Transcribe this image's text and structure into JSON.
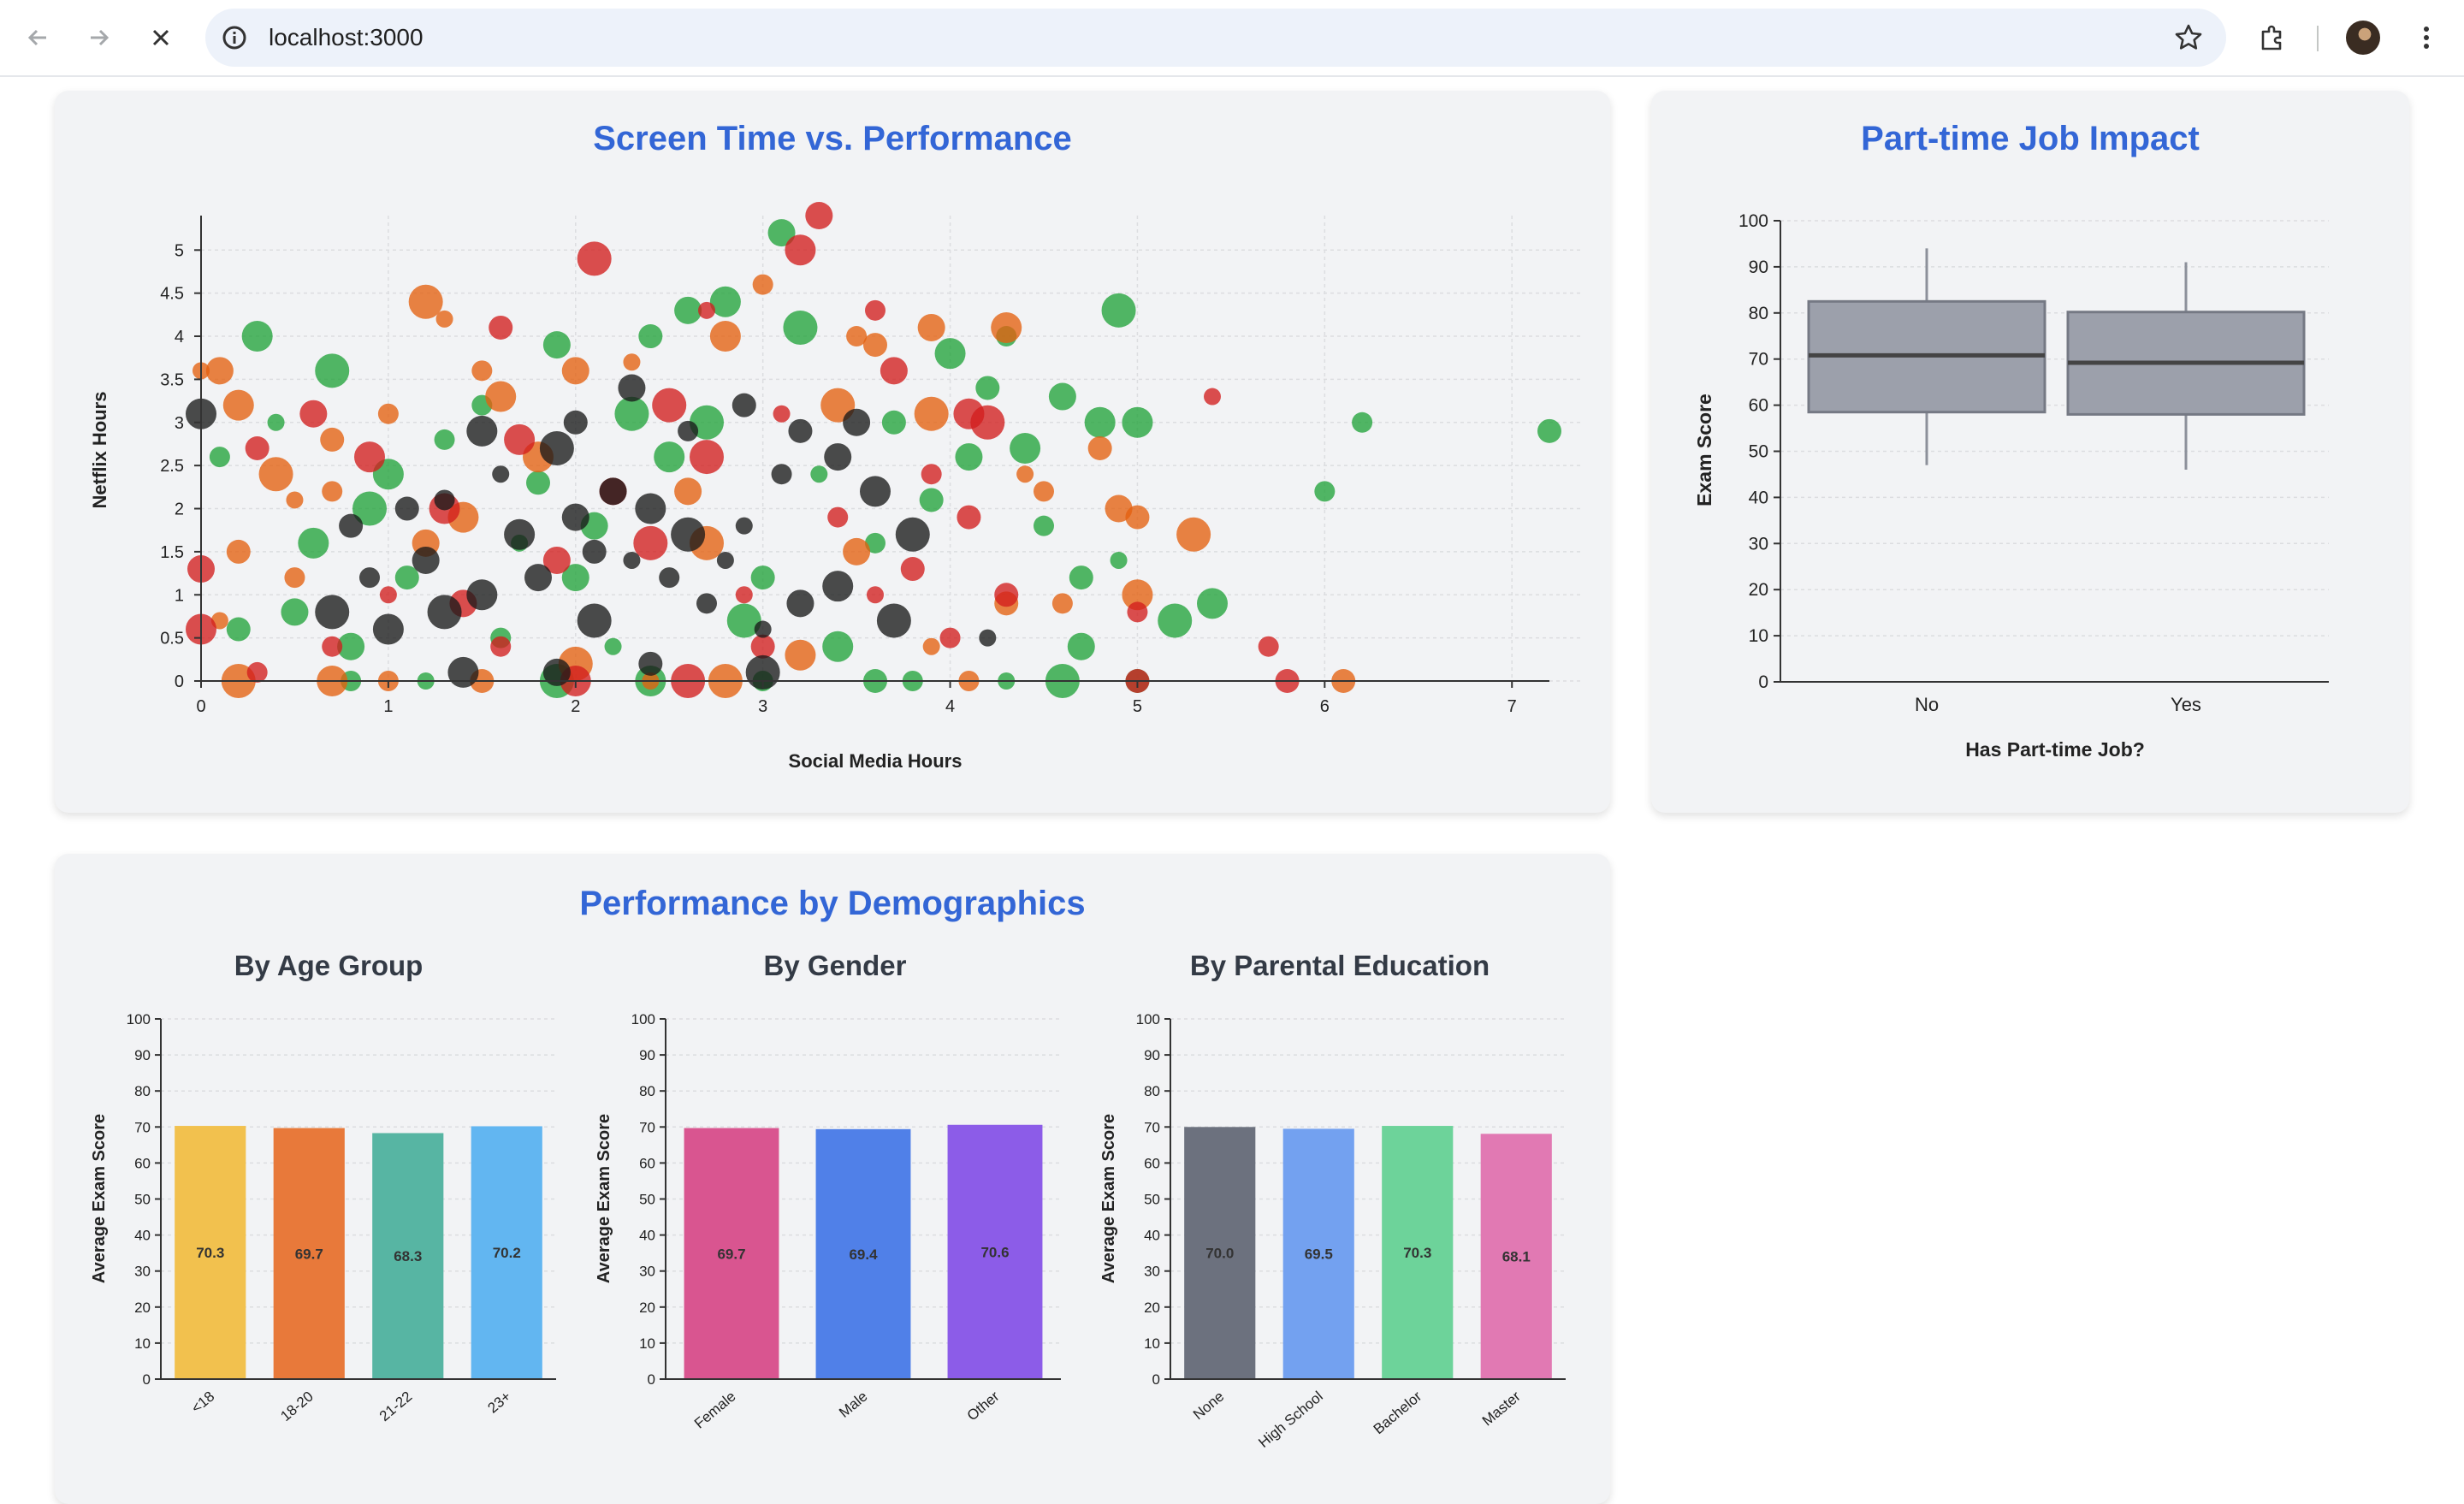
{
  "browser": {
    "url": "localhost:3000"
  },
  "scatter_card": {
    "title": "Screen Time vs. Performance"
  },
  "box_card": {
    "title": "Part-time Job Impact"
  },
  "demo_card": {
    "title": "Performance by Demographics"
  },
  "colors": {
    "title_blue": "#3366d6",
    "scatter_green": "#22a33b",
    "scatter_orange": "#e46010",
    "scatter_red": "#d21e1e",
    "scatter_dark": "#1a1a1a",
    "box_fill": "#9ca0ab"
  },
  "chart_data": [
    {
      "type": "scatter",
      "title": "Screen Time vs. Performance",
      "xlabel": "Social Media Hours",
      "ylabel": "Netflix Hours",
      "xlim": [
        0,
        7.2
      ],
      "ylim": [
        0,
        5.4
      ],
      "xticks": [
        0,
        1,
        2,
        3,
        4,
        5,
        6,
        7
      ],
      "yticks": [
        0,
        0.5,
        1,
        1.5,
        2,
        2.5,
        3,
        3.5,
        4,
        4.5,
        5
      ],
      "grid": true,
      "series": [
        {
          "color": "green",
          "points": [
            [
              3.1,
              5.2
            ],
            [
              0.3,
              4.0
            ],
            [
              0.7,
              3.6
            ],
            [
              0.4,
              3.0
            ],
            [
              1.5,
              3.2
            ],
            [
              2.4,
              4.0
            ],
            [
              2.6,
              4.3
            ],
            [
              2.8,
              4.4
            ],
            [
              3.2,
              4.1
            ],
            [
              4.0,
              3.8
            ],
            [
              4.3,
              4.0
            ],
            [
              4.2,
              3.4
            ],
            [
              4.6,
              3.3
            ],
            [
              4.8,
              3.0
            ],
            [
              4.9,
              4.3
            ],
            [
              5.0,
              3.0
            ],
            [
              6.2,
              3.0
            ],
            [
              7.2,
              2.9
            ],
            [
              6.0,
              2.2
            ],
            [
              5.4,
              0.9
            ],
            [
              5.2,
              0.7
            ],
            [
              4.9,
              1.4
            ],
            [
              4.5,
              1.8
            ],
            [
              4.7,
              1.2
            ],
            [
              4.7,
              0.4
            ],
            [
              5.0,
              0.0
            ],
            [
              4.6,
              0.0
            ],
            [
              4.3,
              0.0
            ],
            [
              3.8,
              0.0
            ],
            [
              3.6,
              0.0
            ],
            [
              3.0,
              0.0
            ],
            [
              2.4,
              0.0
            ],
            [
              1.9,
              0.0
            ],
            [
              1.2,
              0.0
            ],
            [
              0.8,
              0.0
            ],
            [
              0.2,
              0.6
            ],
            [
              0.5,
              0.8
            ],
            [
              0.6,
              1.6
            ],
            [
              0.9,
              2.0
            ],
            [
              1.0,
              2.4
            ],
            [
              1.3,
              2.8
            ],
            [
              1.8,
              2.3
            ],
            [
              2.1,
              1.8
            ],
            [
              2.5,
              2.6
            ],
            [
              2.7,
              3.0
            ],
            [
              3.3,
              2.4
            ],
            [
              3.6,
              1.6
            ],
            [
              3.9,
              2.1
            ],
            [
              4.1,
              2.6
            ],
            [
              3.4,
              0.4
            ],
            [
              2.9,
              0.7
            ],
            [
              2.2,
              0.4
            ],
            [
              1.6,
              0.5
            ],
            [
              1.1,
              1.2
            ],
            [
              0.8,
              0.4
            ],
            [
              3.0,
              1.2
            ],
            [
              2.3,
              3.1
            ],
            [
              1.7,
              1.6
            ],
            [
              0.1,
              2.6
            ],
            [
              3.7,
              3.0
            ],
            [
              1.9,
              3.9
            ],
            [
              4.4,
              2.7
            ],
            [
              2.0,
              1.2
            ]
          ]
        },
        {
          "color": "orange",
          "points": [
            [
              3.0,
              4.6
            ],
            [
              2.8,
              4.0
            ],
            [
              1.2,
              4.4
            ],
            [
              1.3,
              4.2
            ],
            [
              1.5,
              3.6
            ],
            [
              0.0,
              3.6
            ],
            [
              0.1,
              3.6
            ],
            [
              0.2,
              3.2
            ],
            [
              0.4,
              2.4
            ],
            [
              0.5,
              2.1
            ],
            [
              0.7,
              2.2
            ],
            [
              0.7,
              2.8
            ],
            [
              1.0,
              3.1
            ],
            [
              1.6,
              3.3
            ],
            [
              2.0,
              3.6
            ],
            [
              2.3,
              3.7
            ],
            [
              3.5,
              4.0
            ],
            [
              3.6,
              3.9
            ],
            [
              3.9,
              4.1
            ],
            [
              4.3,
              4.1
            ],
            [
              3.9,
              3.1
            ],
            [
              4.4,
              2.4
            ],
            [
              4.5,
              2.2
            ],
            [
              4.8,
              2.7
            ],
            [
              4.9,
              2.0
            ],
            [
              5.0,
              1.9
            ],
            [
              5.3,
              1.7
            ],
            [
              5.0,
              1.0
            ],
            [
              4.6,
              0.9
            ],
            [
              4.3,
              0.9
            ],
            [
              3.5,
              1.5
            ],
            [
              3.2,
              0.3
            ],
            [
              2.8,
              0.0
            ],
            [
              2.4,
              0.0
            ],
            [
              2.0,
              0.2
            ],
            [
              1.5,
              0.0
            ],
            [
              1.0,
              0.0
            ],
            [
              0.7,
              0.0
            ],
            [
              0.2,
              0.0
            ],
            [
              0.1,
              0.7
            ],
            [
              0.5,
              1.2
            ],
            [
              0.2,
              1.5
            ],
            [
              1.2,
              1.6
            ],
            [
              1.4,
              1.9
            ],
            [
              2.7,
              1.6
            ],
            [
              3.9,
              0.4
            ],
            [
              4.1,
              0.0
            ],
            [
              6.1,
              0.0
            ],
            [
              2.6,
              2.2
            ],
            [
              1.8,
              2.6
            ],
            [
              3.4,
              3.2
            ]
          ]
        },
        {
          "color": "red",
          "points": [
            [
              3.3,
              5.4
            ],
            [
              3.2,
              5.0
            ],
            [
              2.1,
              4.9
            ],
            [
              2.7,
              4.3
            ],
            [
              3.6,
              4.3
            ],
            [
              1.6,
              4.1
            ],
            [
              3.7,
              3.6
            ],
            [
              4.1,
              3.1
            ],
            [
              4.2,
              3.0
            ],
            [
              5.4,
              3.3
            ],
            [
              5.7,
              0.4
            ],
            [
              5.8,
              0.0
            ],
            [
              5.0,
              0.8
            ],
            [
              5.0,
              0.0
            ],
            [
              0.0,
              1.3
            ],
            [
              0.0,
              0.6
            ],
            [
              0.3,
              0.1
            ],
            [
              0.3,
              2.7
            ],
            [
              0.6,
              3.1
            ],
            [
              1.7,
              2.8
            ],
            [
              2.5,
              3.2
            ],
            [
              3.1,
              3.1
            ],
            [
              3.9,
              2.4
            ],
            [
              4.3,
              1.0
            ],
            [
              4.0,
              0.5
            ],
            [
              3.0,
              0.4
            ],
            [
              2.6,
              0.0
            ],
            [
              2.0,
              0.0
            ],
            [
              1.6,
              0.4
            ],
            [
              1.0,
              1.0
            ],
            [
              1.4,
              0.9
            ],
            [
              0.9,
              2.6
            ],
            [
              2.4,
              1.6
            ],
            [
              2.9,
              1.0
            ],
            [
              3.4,
              1.9
            ],
            [
              3.8,
              1.3
            ],
            [
              2.2,
              2.2
            ],
            [
              1.3,
              2.0
            ],
            [
              2.7,
              2.6
            ],
            [
              3.6,
              1.0
            ],
            [
              0.7,
              0.4
            ],
            [
              4.1,
              1.9
            ],
            [
              1.9,
              1.4
            ]
          ]
        },
        {
          "color": "dark",
          "points": [
            [
              2.3,
              3.4
            ],
            [
              2.0,
              3.0
            ],
            [
              1.9,
              2.7
            ],
            [
              1.6,
              2.4
            ],
            [
              1.3,
              2.1
            ],
            [
              1.1,
              2.0
            ],
            [
              2.2,
              2.2
            ],
            [
              2.4,
              2.0
            ],
            [
              2.6,
              1.7
            ],
            [
              2.9,
              1.8
            ],
            [
              3.1,
              2.4
            ],
            [
              3.2,
              2.9
            ],
            [
              3.4,
              2.6
            ],
            [
              3.6,
              2.2
            ],
            [
              3.8,
              1.7
            ],
            [
              2.8,
              1.4
            ],
            [
              2.5,
              1.2
            ],
            [
              2.1,
              1.5
            ],
            [
              1.8,
              1.2
            ],
            [
              1.5,
              1.0
            ],
            [
              1.3,
              0.8
            ],
            [
              1.0,
              0.6
            ],
            [
              0.9,
              1.2
            ],
            [
              0.8,
              1.8
            ],
            [
              1.2,
              1.4
            ],
            [
              1.7,
              1.7
            ],
            [
              2.0,
              1.9
            ],
            [
              2.3,
              1.4
            ],
            [
              2.7,
              0.9
            ],
            [
              3.0,
              0.6
            ],
            [
              3.2,
              0.9
            ],
            [
              3.4,
              1.1
            ],
            [
              3.7,
              0.7
            ],
            [
              4.2,
              0.5
            ],
            [
              3.0,
              0.1
            ],
            [
              2.4,
              0.2
            ],
            [
              1.9,
              0.1
            ],
            [
              1.4,
              0.1
            ],
            [
              0.7,
              0.8
            ],
            [
              0.0,
              3.1
            ],
            [
              2.6,
              2.9
            ],
            [
              2.9,
              3.2
            ],
            [
              3.5,
              3.0
            ],
            [
              1.5,
              2.9
            ],
            [
              2.1,
              0.7
            ]
          ]
        }
      ]
    },
    {
      "type": "box",
      "title": "Part-time Job Impact",
      "xlabel": "Has Part-time Job?",
      "ylabel": "Exam Score",
      "ylim": [
        0,
        100
      ],
      "yticks": [
        0,
        10,
        20,
        30,
        40,
        50,
        60,
        70,
        80,
        90,
        100
      ],
      "categories": [
        "No",
        "Yes"
      ],
      "boxes": [
        {
          "category": "No",
          "min": 47,
          "q1": 58.5,
          "median": 70.8,
          "q3": 82.5,
          "max": 94
        },
        {
          "category": "Yes",
          "min": 46,
          "q1": 58,
          "median": 69.2,
          "q3": 80.2,
          "max": 91
        }
      ]
    },
    {
      "type": "bar",
      "title": "By Age Group",
      "ylabel": "Average Exam Score",
      "ylim": [
        0,
        100
      ],
      "yticks": [
        0,
        10,
        20,
        30,
        40,
        50,
        60,
        70,
        80,
        90,
        100
      ],
      "categories": [
        "<18",
        "18-20",
        "21-22",
        "23+"
      ],
      "values": [
        70.3,
        69.7,
        68.3,
        70.2
      ],
      "labels": [
        "70.3",
        "69.7",
        "68.3",
        "70.2"
      ],
      "colors": [
        "#f2c14e",
        "#e8793a",
        "#57b5a3",
        "#62b6f1"
      ]
    },
    {
      "type": "bar",
      "title": "By Gender",
      "ylabel": "Average Exam Score",
      "ylim": [
        0,
        100
      ],
      "yticks": [
        0,
        10,
        20,
        30,
        40,
        50,
        60,
        70,
        80,
        90,
        100
      ],
      "categories": [
        "Female",
        "Male",
        "Other"
      ],
      "values": [
        69.7,
        69.4,
        70.6
      ],
      "labels": [
        "69.7",
        "69.4",
        "70.6"
      ],
      "colors": [
        "#d95590",
        "#5080e8",
        "#8c5ce8"
      ]
    },
    {
      "type": "bar",
      "title": "By Parental Education",
      "ylabel": "Average Exam Score",
      "ylim": [
        0,
        100
      ],
      "yticks": [
        0,
        10,
        20,
        30,
        40,
        50,
        60,
        70,
        80,
        90,
        100
      ],
      "categories": [
        "None",
        "High School",
        "Bachelor",
        "Master"
      ],
      "values": [
        70.0,
        69.5,
        70.3,
        68.1
      ],
      "labels": [
        "70.0",
        "69.5",
        "70.3",
        "68.1"
      ],
      "colors": [
        "#6c717e",
        "#73a1f0",
        "#6dd39a",
        "#e179b3"
      ]
    }
  ]
}
